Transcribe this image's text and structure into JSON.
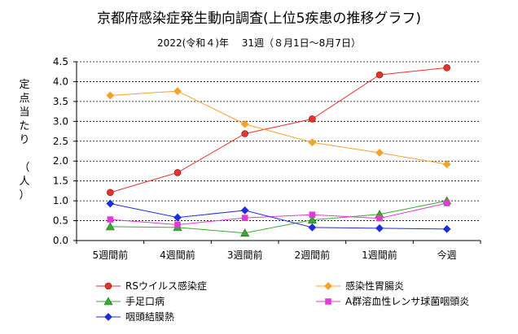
{
  "chart_data": {
    "type": "line",
    "title": "京都府感染症発生動向調査(上位5疾患の推移グラフ)",
    "subtitle": "2022(令和４)年　 31週（８月1日～8月7日）",
    "ylabel": "定点当たり　（人）",
    "ylabel_chars": [
      "定",
      "点",
      "当",
      "た",
      "り",
      "",
      "（",
      "人",
      "）"
    ],
    "ylim": [
      0,
      4.5
    ],
    "yticks": [
      "0.0",
      "0.5",
      "1.0",
      "1.5",
      "2.0",
      "2.5",
      "3.0",
      "3.5",
      "4.0",
      "4.5"
    ],
    "ytick_values": [
      0,
      0.5,
      1.0,
      1.5,
      2.0,
      2.5,
      3.0,
      3.5,
      4.0,
      4.5
    ],
    "grid": true,
    "legend_position": "bottom",
    "categories": [
      "5週間前",
      "4週間前",
      "3週間前",
      "2週間前",
      "1週間前",
      "今週"
    ],
    "series": [
      {
        "name": "RSウイルス感染症",
        "color": "#e8322d",
        "marker": "circle",
        "values": [
          1.21,
          1.71,
          2.69,
          3.06,
          4.17,
          4.35
        ]
      },
      {
        "name": "感染性胃腸炎",
        "color": "#f5a22a",
        "marker": "diamond",
        "values": [
          3.65,
          3.76,
          2.93,
          2.47,
          2.21,
          1.92
        ]
      },
      {
        "name": "手足口病",
        "color": "#3aa935",
        "marker": "triangle",
        "values": [
          0.35,
          0.33,
          0.19,
          0.52,
          0.66,
          1.0
        ]
      },
      {
        "name": "A群溶血性レンサ球菌咽頭炎",
        "color": "#e23bd2",
        "marker": "square",
        "values": [
          0.53,
          0.4,
          0.57,
          0.65,
          0.56,
          0.94
        ]
      },
      {
        "name": "咽頭結膜熱",
        "color": "#1f2fd8",
        "marker": "diamond",
        "values": [
          0.93,
          0.58,
          0.76,
          0.33,
          0.31,
          0.29
        ]
      }
    ]
  }
}
